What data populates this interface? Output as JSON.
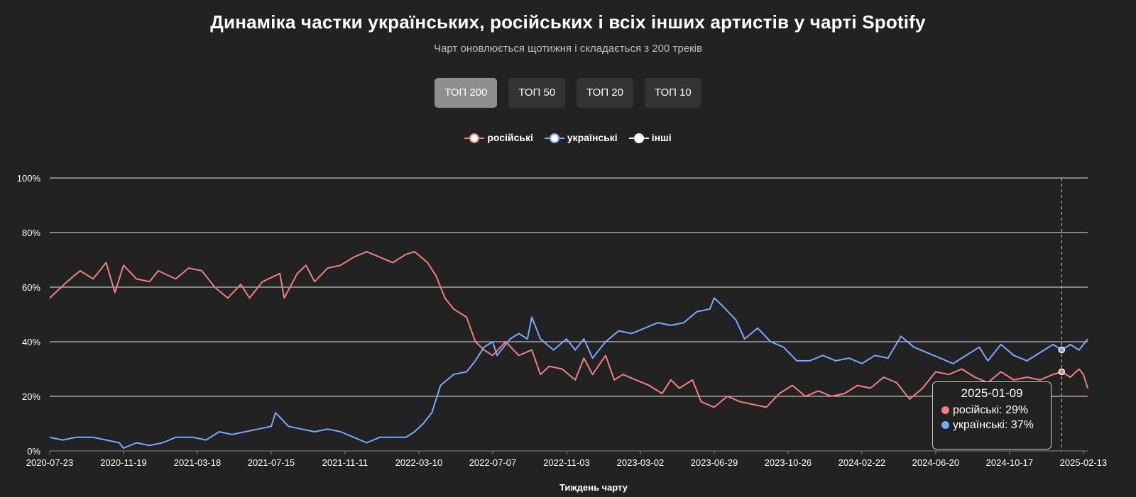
{
  "header": {
    "title": "Динаміка частки українських, російських і всіх інших артистів у чарті Spotify",
    "subtitle": "Чарт оновлюється щотижня і складається з 200 треків"
  },
  "tabs": [
    {
      "label": "ТОП 200",
      "active": true
    },
    {
      "label": "ТОП 50",
      "active": false
    },
    {
      "label": "ТОП 20",
      "active": false
    },
    {
      "label": "ТОП 10",
      "active": false
    }
  ],
  "legend": [
    {
      "label": "російські",
      "color": "#f08080"
    },
    {
      "label": "українські",
      "color": "#7ba7ff"
    },
    {
      "label": "інші",
      "color": "#ffffff"
    }
  ],
  "tooltip": {
    "date": "2025-01-09",
    "rows": [
      {
        "label": "російські: 29%",
        "color": "#f08080"
      },
      {
        "label": "українські: 37%",
        "color": "#7ba7ff"
      }
    ]
  },
  "chart_data": {
    "type": "line",
    "title": "Динаміка частки українських, російських і всіх інших артистів у чарті Spotify",
    "subtitle": "Чарт оновлюється щотижня і складається з 200 треків",
    "xlabel": "Тиждень чарту",
    "ylabel": "",
    "ylim": [
      0,
      100
    ],
    "x_range": [
      "2020-07-23",
      "2025-02-20"
    ],
    "y_ticks": [
      "0%",
      "20%",
      "40%",
      "60%",
      "80%",
      "100%"
    ],
    "x_ticks": [
      "2020-07-23",
      "2020-11-19",
      "2021-03-18",
      "2021-07-15",
      "2021-11-11",
      "2022-03-10",
      "2022-07-07",
      "2022-11-03",
      "2023-03-02",
      "2023-06-29",
      "2023-10-26",
      "2024-02-22",
      "2024-06-20",
      "2024-10-17",
      "2025-02-13"
    ],
    "grid": true,
    "legend_position": "top-center",
    "highlight_x": "2025-01-09",
    "series": [
      {
        "name": "російські",
        "color": "#f08080",
        "points": [
          [
            "2020-07-23",
            56
          ],
          [
            "2020-08-20",
            62
          ],
          [
            "2020-09-10",
            66
          ],
          [
            "2020-10-01",
            63
          ],
          [
            "2020-10-22",
            69
          ],
          [
            "2020-11-05",
            58
          ],
          [
            "2020-11-19",
            68
          ],
          [
            "2020-12-10",
            63
          ],
          [
            "2020-12-31",
            62
          ],
          [
            "2021-01-14",
            66
          ],
          [
            "2021-02-11",
            63
          ],
          [
            "2021-03-04",
            67
          ],
          [
            "2021-03-25",
            66
          ],
          [
            "2021-04-15",
            60
          ],
          [
            "2021-05-06",
            56
          ],
          [
            "2021-05-27",
            61
          ],
          [
            "2021-06-10",
            56
          ],
          [
            "2021-07-01",
            62
          ],
          [
            "2021-07-29",
            65
          ],
          [
            "2021-08-05",
            56
          ],
          [
            "2021-08-26",
            65
          ],
          [
            "2021-09-09",
            68
          ],
          [
            "2021-09-23",
            62
          ],
          [
            "2021-10-14",
            67
          ],
          [
            "2021-11-04",
            68
          ],
          [
            "2021-11-25",
            71
          ],
          [
            "2021-12-16",
            73
          ],
          [
            "2022-01-06",
            71
          ],
          [
            "2022-01-27",
            69
          ],
          [
            "2022-02-17",
            72
          ],
          [
            "2022-03-03",
            73
          ],
          [
            "2022-03-24",
            69
          ],
          [
            "2022-04-07",
            64
          ],
          [
            "2022-04-21",
            56
          ],
          [
            "2022-05-05",
            52
          ],
          [
            "2022-05-26",
            49
          ],
          [
            "2022-06-09",
            40
          ],
          [
            "2022-06-23",
            37
          ],
          [
            "2022-07-07",
            35
          ],
          [
            "2022-07-28",
            40
          ],
          [
            "2022-08-18",
            35
          ],
          [
            "2022-09-08",
            37
          ],
          [
            "2022-09-22",
            28
          ],
          [
            "2022-10-06",
            31
          ],
          [
            "2022-10-27",
            30
          ],
          [
            "2022-11-17",
            26
          ],
          [
            "2022-12-01",
            34
          ],
          [
            "2022-12-15",
            28
          ],
          [
            "2023-01-05",
            35
          ],
          [
            "2023-01-19",
            26
          ],
          [
            "2023-02-02",
            28
          ],
          [
            "2023-02-23",
            26
          ],
          [
            "2023-03-16",
            24
          ],
          [
            "2023-04-06",
            21
          ],
          [
            "2023-04-20",
            26
          ],
          [
            "2023-05-04",
            23
          ],
          [
            "2023-05-25",
            26
          ],
          [
            "2023-06-08",
            18
          ],
          [
            "2023-06-29",
            16
          ],
          [
            "2023-07-20",
            20
          ],
          [
            "2023-08-10",
            18
          ],
          [
            "2023-08-31",
            17
          ],
          [
            "2023-09-21",
            16
          ],
          [
            "2023-10-12",
            21
          ],
          [
            "2023-11-02",
            24
          ],
          [
            "2023-11-23",
            20
          ],
          [
            "2023-12-14",
            22
          ],
          [
            "2024-01-04",
            20
          ],
          [
            "2024-01-25",
            21
          ],
          [
            "2024-02-15",
            24
          ],
          [
            "2024-03-07",
            23
          ],
          [
            "2024-03-28",
            27
          ],
          [
            "2024-04-18",
            25
          ],
          [
            "2024-05-09",
            19
          ],
          [
            "2024-05-30",
            23
          ],
          [
            "2024-06-20",
            29
          ],
          [
            "2024-07-11",
            28
          ],
          [
            "2024-08-01",
            30
          ],
          [
            "2024-08-22",
            27
          ],
          [
            "2024-09-12",
            25
          ],
          [
            "2024-10-03",
            29
          ],
          [
            "2024-10-24",
            26
          ],
          [
            "2024-11-14",
            27
          ],
          [
            "2024-12-05",
            26
          ],
          [
            "2024-12-26",
            28
          ],
          [
            "2025-01-09",
            29
          ],
          [
            "2025-01-23",
            27
          ],
          [
            "2025-02-06",
            30
          ],
          [
            "2025-02-13",
            28
          ],
          [
            "2025-02-20",
            23
          ]
        ]
      },
      {
        "name": "українські",
        "color": "#7ba7ff",
        "points": [
          [
            "2020-07-23",
            5
          ],
          [
            "2020-08-13",
            4
          ],
          [
            "2020-09-03",
            5
          ],
          [
            "2020-10-01",
            5
          ],
          [
            "2020-10-22",
            4
          ],
          [
            "2020-11-12",
            3
          ],
          [
            "2020-11-19",
            1
          ],
          [
            "2020-12-10",
            3
          ],
          [
            "2020-12-31",
            2
          ],
          [
            "2021-01-21",
            3
          ],
          [
            "2021-02-11",
            5
          ],
          [
            "2021-03-11",
            5
          ],
          [
            "2021-04-01",
            4
          ],
          [
            "2021-04-22",
            7
          ],
          [
            "2021-05-13",
            6
          ],
          [
            "2021-06-03",
            7
          ],
          [
            "2021-06-24",
            8
          ],
          [
            "2021-07-15",
            9
          ],
          [
            "2021-07-22",
            14
          ],
          [
            "2021-08-12",
            9
          ],
          [
            "2021-09-02",
            8
          ],
          [
            "2021-09-23",
            7
          ],
          [
            "2021-10-14",
            8
          ],
          [
            "2021-11-04",
            7
          ],
          [
            "2021-11-25",
            5
          ],
          [
            "2021-12-16",
            3
          ],
          [
            "2022-01-06",
            5
          ],
          [
            "2022-01-27",
            5
          ],
          [
            "2022-02-17",
            5
          ],
          [
            "2022-03-03",
            7
          ],
          [
            "2022-03-17",
            10
          ],
          [
            "2022-03-31",
            14
          ],
          [
            "2022-04-14",
            24
          ],
          [
            "2022-05-05",
            28
          ],
          [
            "2022-05-26",
            29
          ],
          [
            "2022-06-09",
            33
          ],
          [
            "2022-06-23",
            38
          ],
          [
            "2022-07-07",
            40
          ],
          [
            "2022-07-14",
            35
          ],
          [
            "2022-08-04",
            41
          ],
          [
            "2022-08-18",
            43
          ],
          [
            "2022-09-01",
            41
          ],
          [
            "2022-09-08",
            49
          ],
          [
            "2022-09-22",
            41
          ],
          [
            "2022-10-13",
            37
          ],
          [
            "2022-11-03",
            41
          ],
          [
            "2022-11-17",
            37
          ],
          [
            "2022-12-01",
            41
          ],
          [
            "2022-12-15",
            34
          ],
          [
            "2023-01-05",
            40
          ],
          [
            "2023-01-26",
            44
          ],
          [
            "2023-02-16",
            43
          ],
          [
            "2023-03-09",
            45
          ],
          [
            "2023-03-30",
            47
          ],
          [
            "2023-04-20",
            46
          ],
          [
            "2023-05-11",
            47
          ],
          [
            "2023-06-01",
            51
          ],
          [
            "2023-06-22",
            52
          ],
          [
            "2023-06-29",
            56
          ],
          [
            "2023-07-13",
            53
          ],
          [
            "2023-08-03",
            48
          ],
          [
            "2023-08-17",
            41
          ],
          [
            "2023-09-07",
            45
          ],
          [
            "2023-09-28",
            40
          ],
          [
            "2023-10-19",
            38
          ],
          [
            "2023-11-09",
            33
          ],
          [
            "2023-11-30",
            33
          ],
          [
            "2023-12-21",
            35
          ],
          [
            "2024-01-11",
            33
          ],
          [
            "2024-02-01",
            34
          ],
          [
            "2024-02-22",
            32
          ],
          [
            "2024-03-14",
            35
          ],
          [
            "2024-04-04",
            34
          ],
          [
            "2024-04-25",
            42
          ],
          [
            "2024-05-16",
            38
          ],
          [
            "2024-06-06",
            36
          ],
          [
            "2024-06-27",
            34
          ],
          [
            "2024-07-18",
            32
          ],
          [
            "2024-08-08",
            35
          ],
          [
            "2024-08-29",
            38
          ],
          [
            "2024-09-12",
            33
          ],
          [
            "2024-10-03",
            39
          ],
          [
            "2024-10-24",
            35
          ],
          [
            "2024-11-14",
            33
          ],
          [
            "2024-12-05",
            36
          ],
          [
            "2024-12-26",
            39
          ],
          [
            "2025-01-09",
            37
          ],
          [
            "2025-01-23",
            39
          ],
          [
            "2025-02-06",
            37
          ],
          [
            "2025-02-13",
            39
          ],
          [
            "2025-02-20",
            41
          ]
        ]
      }
    ]
  }
}
